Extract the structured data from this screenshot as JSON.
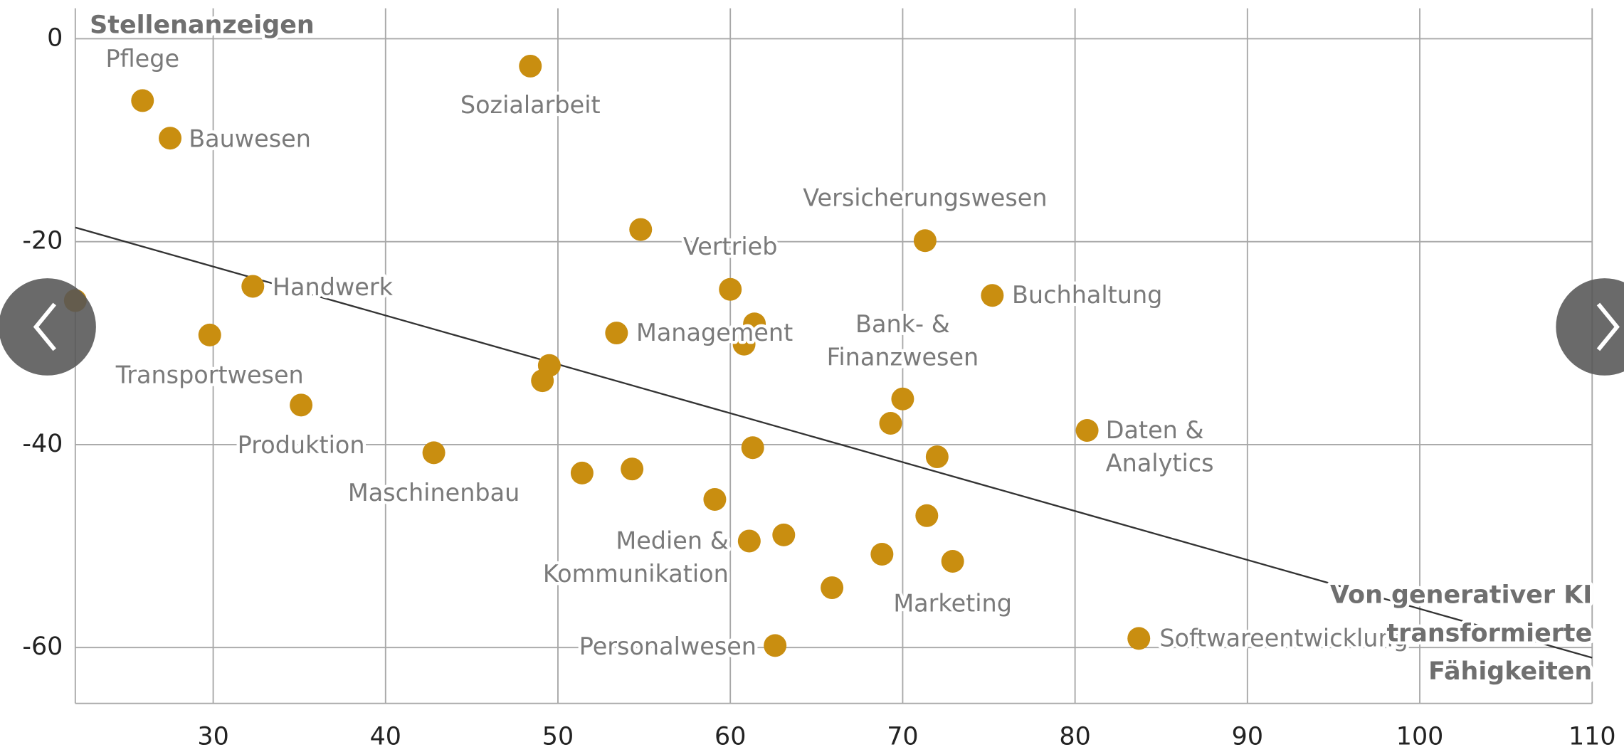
{
  "chart_data": {
    "type": "scatter",
    "ylabel": "Stellenanzeigen",
    "xlabel": [
      "Von generativer KI",
      "transformierte",
      "Fähigkeiten"
    ],
    "xlim": [
      22,
      110
    ],
    "ylim": [
      -65.5,
      3
    ],
    "xticks": [
      30,
      40,
      50,
      60,
      70,
      80,
      90,
      100,
      110
    ],
    "yticks": [
      0,
      -20,
      -40,
      -60
    ],
    "grid": true,
    "color": "#c98e10",
    "trendline": {
      "x": [
        22,
        110
      ],
      "y": [
        -18.6,
        -61
      ],
      "color": "#333333"
    },
    "x": [
      25.9,
      27.5,
      48.4,
      54.8,
      71.3,
      60,
      75.2,
      32.3,
      22,
      29.8,
      53.4,
      61.4,
      60.8,
      49.5,
      49.1,
      35.1,
      70,
      69.3,
      80.7,
      72,
      42.8,
      61.3,
      51.4,
      54.3,
      59.1,
      71.4,
      61.1,
      63.1,
      68.8,
      72.9,
      65.9,
      62.6,
      83.7
    ],
    "y": [
      -6.1,
      -9.8,
      -2.7,
      -18.8,
      -19.9,
      -24.7,
      -25.3,
      -24.4,
      -25.8,
      -29.2,
      -29,
      -28.1,
      -30.1,
      -32.2,
      -33.7,
      -36.1,
      -35.5,
      -37.9,
      -38.6,
      -41.2,
      -40.8,
      -40.3,
      -42.8,
      -42.4,
      -45.4,
      -47,
      -49.5,
      -48.9,
      -50.8,
      -51.5,
      -54.1,
      -59.8,
      -59.1
    ],
    "labels": [
      "Pflege",
      "Bauwesen",
      "Sozialarbeit",
      null,
      "Versicherungswesen",
      "Vertrieb",
      "Buchhaltung",
      "Handwerk",
      null,
      "Transportwesen",
      "Management",
      null,
      null,
      null,
      null,
      "Produktion",
      [
        "Bank- &",
        "Finanzwesen"
      ],
      null,
      [
        "Daten &",
        "Analytics"
      ],
      null,
      "Maschinenbau",
      null,
      null,
      null,
      null,
      null,
      [
        "Medien &",
        "Kommunikation"
      ],
      null,
      null,
      "Marketing",
      null,
      "Personalwesen",
      "Softwareentwicklung"
    ]
  }
}
